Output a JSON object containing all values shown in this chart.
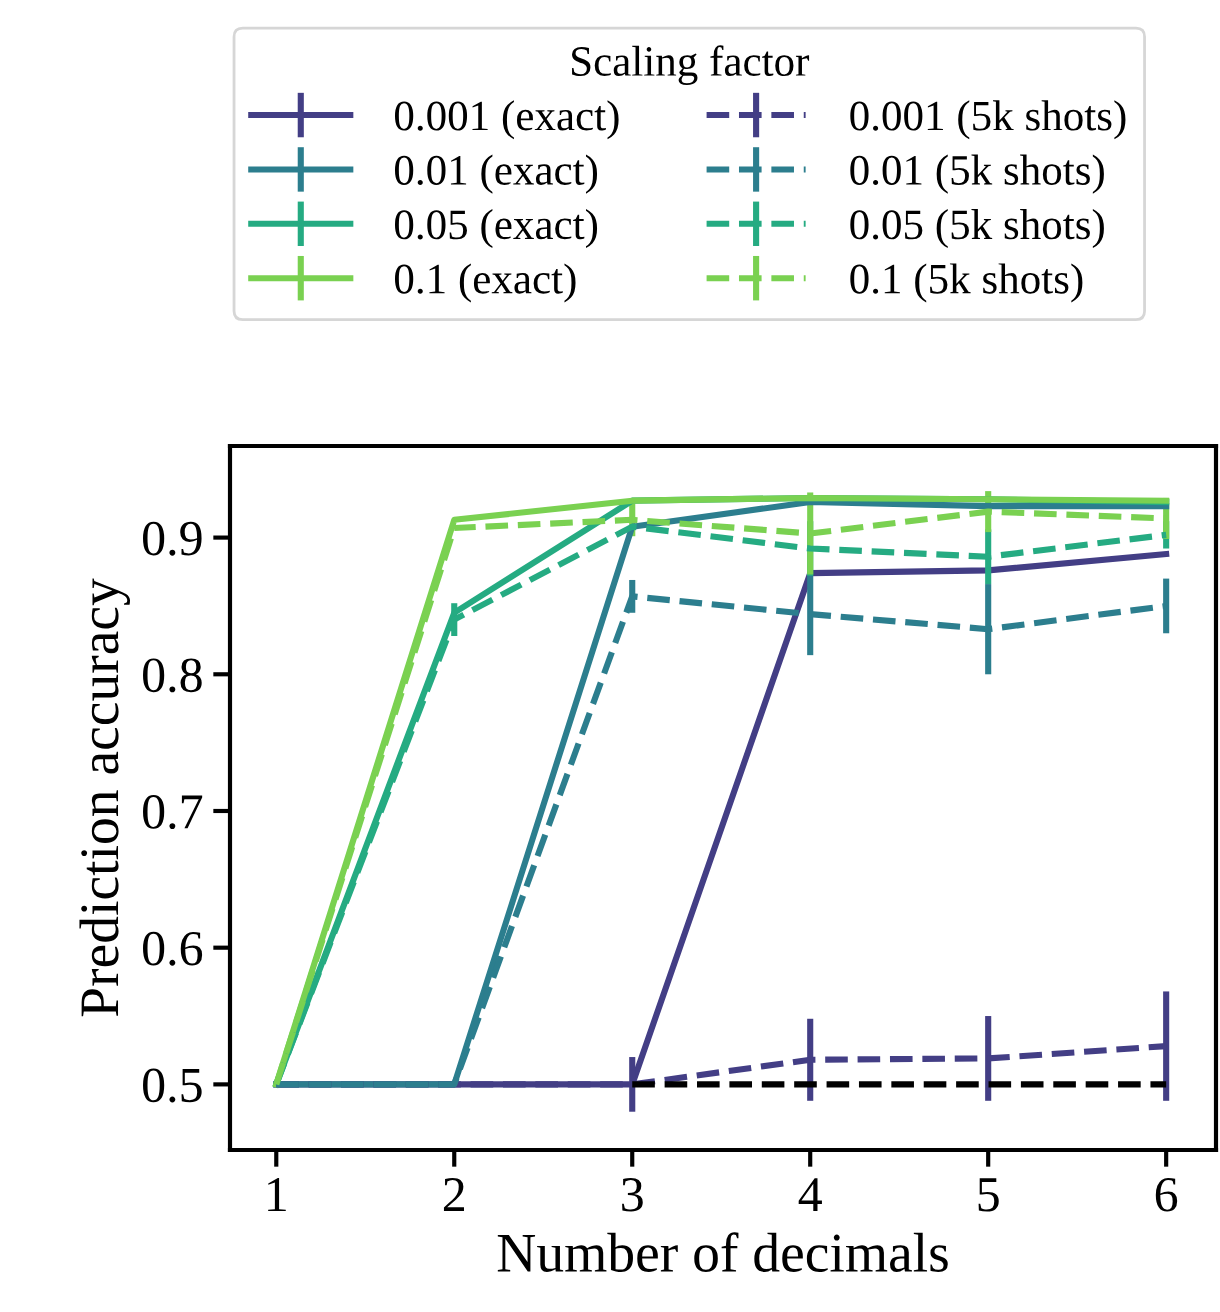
{
  "chart_data": {
    "type": "line",
    "xlabel": "Number of decimals",
    "ylabel": "Prediction accuracy",
    "legend_title": "Scaling factor",
    "legend": "top",
    "grid": false,
    "x": [
      1,
      2,
      3,
      4,
      5,
      6
    ],
    "xlim": [
      0.74,
      6.28
    ],
    "xticks": [
      1,
      2,
      3,
      4,
      5,
      6
    ],
    "ylim": [
      0.452,
      0.967
    ],
    "yticks": [
      0.5,
      0.6,
      0.7,
      0.8,
      0.9
    ],
    "series": [
      {
        "name": "0.001 (exact)",
        "color": "#433e85",
        "line_style": "solid",
        "values": [
          0.5,
          0.5,
          0.5,
          0.874,
          0.876,
          0.888
        ],
        "errors": [
          null,
          null,
          0.02,
          null,
          null,
          null
        ]
      },
      {
        "name": "0.01 (exact)",
        "color": "#2c7e8e",
        "line_style": "solid",
        "values": [
          0.5,
          0.5,
          0.908,
          0.926,
          0.923,
          0.923
        ],
        "errors": [
          null,
          null,
          null,
          null,
          null,
          null
        ]
      },
      {
        "name": "0.05 (exact)",
        "color": "#25ab82",
        "line_style": "solid",
        "values": [
          0.5,
          0.845,
          0.927,
          0.929,
          0.928,
          0.926
        ],
        "errors": [
          null,
          null,
          null,
          null,
          null,
          null
        ]
      },
      {
        "name": "0.1 (exact)",
        "color": "#7ad151",
        "line_style": "solid",
        "values": [
          0.5,
          0.913,
          0.927,
          0.929,
          0.928,
          0.927
        ],
        "errors": [
          null,
          null,
          null,
          null,
          null,
          null
        ]
      },
      {
        "name": "0.001 (5k shots)",
        "color": "#433e85",
        "line_style": "dashed",
        "values": [
          0.5,
          0.5,
          0.5,
          0.518,
          0.519,
          0.528
        ],
        "errors": [
          null,
          null,
          null,
          0.03,
          0.031,
          0.04
        ]
      },
      {
        "name": "0.01 (5k shots)",
        "color": "#2c7e8e",
        "line_style": "dashed",
        "values": [
          0.5,
          0.5,
          0.857,
          0.844,
          0.833,
          0.85
        ],
        "errors": [
          null,
          null,
          0.012,
          0.03,
          0.033,
          0.02
        ]
      },
      {
        "name": "0.05 (5k shots)",
        "color": "#25ab82",
        "line_style": "dashed",
        "values": [
          0.5,
          0.84,
          0.908,
          0.892,
          0.886,
          0.902
        ],
        "errors": [
          null,
          0.012,
          null,
          0.02,
          0.02,
          0.01
        ]
      },
      {
        "name": "0.1 (5k shots)",
        "color": "#7ad151",
        "line_style": "dashed",
        "values": [
          0.5,
          0.907,
          0.913,
          0.903,
          0.919,
          0.914
        ],
        "errors": [
          null,
          null,
          0.012,
          0.03,
          0.015,
          0.015
        ]
      },
      {
        "color": "#000000",
        "line_style": "dashed",
        "values": [
          null,
          null,
          0.5,
          0.5,
          0.5,
          0.5
        ]
      }
    ]
  }
}
